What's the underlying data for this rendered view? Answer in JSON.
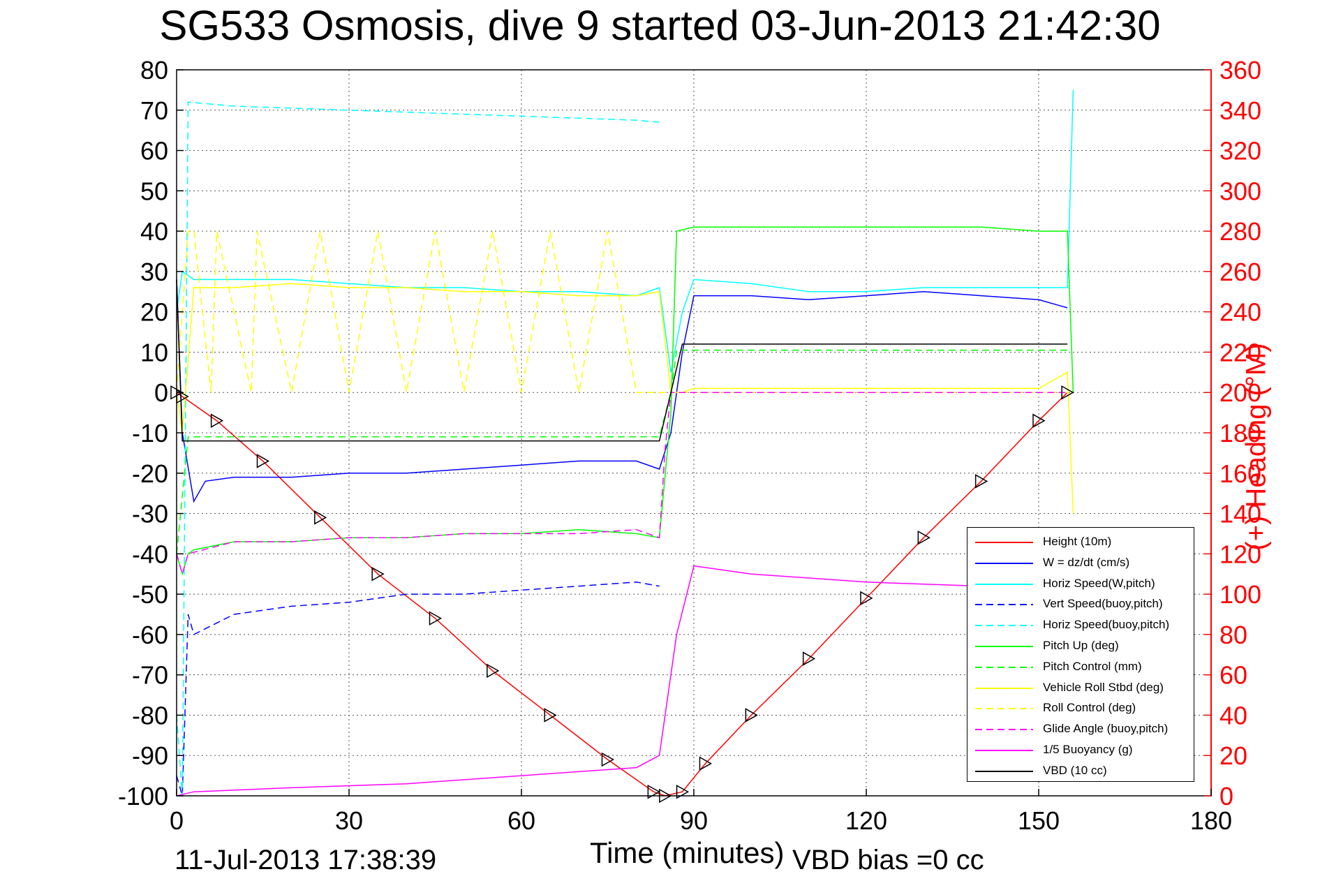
{
  "title": "SG533 Osmosis, dive 9 started 03-Jun-2013 21:42:30",
  "footer": {
    "timestamp": "11-Jul-2013 17:38:39",
    "vbd_bias": "VBD bias =0 cc"
  },
  "chart_data": {
    "type": "line",
    "xlabel": "Time (minutes)",
    "ylabel": "",
    "y2label": "(+) Heading (°M)",
    "xlim": [
      0,
      180
    ],
    "ylim": [
      -100,
      80
    ],
    "y2lim": [
      0,
      360
    ],
    "xticks": [
      0,
      30,
      60,
      90,
      120,
      150,
      180
    ],
    "yticks": [
      80,
      70,
      60,
      50,
      40,
      30,
      20,
      10,
      0,
      -10,
      -20,
      -30,
      -40,
      -50,
      -60,
      -70,
      -80,
      -90,
      -100
    ],
    "y2ticks": [
      360,
      340,
      320,
      300,
      280,
      260,
      240,
      220,
      200,
      180,
      160,
      140,
      120,
      100,
      80,
      60,
      40,
      20,
      0
    ],
    "grid": true,
    "legend_position": "bottom-right",
    "colors": {
      "height": "#ff0000",
      "w": "#0000ff",
      "horiz_w": "#00ffff",
      "vert_buoy": "#0000ff",
      "horiz_buoy": "#00ffff",
      "pitch_up": "#00ff00",
      "pitch_ctrl": "#00ff00",
      "roll": "#ffff00",
      "roll_ctrl": "#ffff00",
      "glide": "#ff00ff",
      "buoyancy": "#ff00ff",
      "vbd": "#000000"
    },
    "series": [
      {
        "name": "Height (10m)",
        "x": [
          0,
          1,
          7,
          15,
          25,
          35,
          45,
          55,
          65,
          75,
          83,
          85,
          88,
          92,
          100,
          110,
          120,
          130,
          140,
          150,
          155
        ],
        "values": [
          0,
          -1,
          -7,
          -17,
          -31,
          -45,
          -56,
          -69,
          -80,
          -91,
          -99,
          -100,
          -99,
          -92,
          -80,
          -66,
          -51,
          -36,
          -22,
          -7,
          0
        ]
      },
      {
        "name": "W = dz/dt (cm/s)",
        "x": [
          0,
          1,
          3,
          5,
          10,
          20,
          30,
          40,
          50,
          60,
          70,
          80,
          84,
          86,
          88,
          90,
          100,
          110,
          120,
          130,
          140,
          150,
          155
        ],
        "values": [
          28,
          -10,
          -27,
          -22,
          -21,
          -21,
          -20,
          -20,
          -19,
          -18,
          -17,
          -17,
          -19,
          -10,
          10,
          24,
          24,
          23,
          24,
          25,
          24,
          23,
          21
        ]
      },
      {
        "name": "Horiz Speed(W,pitch)",
        "x": [
          0,
          1,
          3,
          10,
          20,
          30,
          40,
          50,
          60,
          70,
          80,
          84,
          86,
          88,
          90,
          100,
          110,
          120,
          130,
          140,
          150,
          155,
          156
        ],
        "values": [
          20,
          30,
          28,
          28,
          28,
          27,
          26,
          26,
          25,
          25,
          24,
          26,
          5,
          20,
          28,
          27,
          25,
          25,
          26,
          26,
          26,
          26,
          75
        ]
      },
      {
        "name": "Vert Speed(buoy,pitch)",
        "x": [
          0,
          1,
          2,
          3,
          10,
          20,
          30,
          40,
          50,
          60,
          70,
          80,
          84
        ],
        "values": [
          -95,
          -100,
          -55,
          -60,
          -55,
          -53,
          -52,
          -50,
          -50,
          -49,
          -48,
          -47,
          -48
        ]
      },
      {
        "name": "Horiz Speed(buoy,pitch)",
        "x": [
          0,
          1,
          2,
          10,
          20,
          30,
          40,
          50,
          60,
          70,
          80,
          84
        ],
        "values": [
          -80,
          -100,
          72,
          71,
          70.5,
          70,
          69.5,
          69,
          68.5,
          68,
          67.5,
          67
        ]
      },
      {
        "name": "Pitch Up (deg)",
        "x": [
          0,
          1,
          2,
          3,
          10,
          20,
          30,
          40,
          50,
          60,
          70,
          80,
          84,
          86,
          87,
          90,
          100,
          110,
          120,
          130,
          140,
          150,
          155,
          156
        ],
        "values": [
          -40,
          -45,
          -40,
          -39,
          -37,
          -37,
          -36,
          -36,
          -35,
          -35,
          -34,
          -35,
          -36,
          -5,
          40,
          41,
          41,
          41,
          41,
          41,
          41,
          40,
          40,
          0
        ]
      },
      {
        "name": "Pitch Control (mm)",
        "x": [
          0,
          2,
          84,
          86,
          87,
          155
        ],
        "values": [
          -40,
          -11,
          -11,
          0,
          10.5,
          10.5
        ]
      },
      {
        "name": "Vehicle Roll Stbd (deg)",
        "x": [
          0,
          1,
          3,
          10,
          20,
          30,
          40,
          50,
          60,
          70,
          80,
          84,
          86,
          88,
          90,
          100,
          110,
          120,
          130,
          140,
          150,
          155,
          156
        ],
        "values": [
          0,
          -10,
          26,
          26,
          27,
          26,
          26,
          25,
          25,
          24,
          24,
          25,
          0,
          0,
          1,
          1,
          1,
          1,
          1,
          1,
          1,
          5,
          -30
        ]
      },
      {
        "name": "Roll Control (deg)",
        "x": [
          0,
          2,
          3,
          6,
          7,
          13,
          14,
          20,
          25,
          30,
          35,
          40,
          45,
          50,
          55,
          60,
          65,
          70,
          75,
          80,
          84,
          86,
          155
        ],
        "values": [
          0,
          40,
          40,
          0,
          40,
          0,
          40,
          0,
          40,
          0,
          40,
          0,
          40,
          0,
          40,
          0,
          40,
          0,
          40,
          0,
          0,
          0,
          0
        ]
      },
      {
        "name": "Glide Angle (buoy,pitch)",
        "x": [
          0,
          1,
          2,
          10,
          20,
          30,
          40,
          50,
          60,
          70,
          80,
          84,
          85,
          86,
          155
        ],
        "values": [
          -40,
          -45,
          -40,
          -37,
          -37,
          -36,
          -36,
          -35,
          -35,
          -35,
          -34,
          -36,
          -14,
          0,
          0
        ]
      },
      {
        "name": "1/5 Buoyancy (g)",
        "x": [
          0,
          3,
          20,
          40,
          60,
          80,
          84,
          87,
          90,
          100,
          120,
          140,
          155
        ],
        "values": [
          -100,
          -99,
          -98,
          -97,
          -95,
          -93,
          -90,
          -60,
          -43,
          -45,
          -47,
          -48,
          -48
        ]
      },
      {
        "name": "VBD (10 cc)",
        "x": [
          0,
          1,
          84,
          86,
          88,
          155
        ],
        "values": [
          28,
          -12,
          -12,
          0,
          12,
          12
        ]
      }
    ]
  }
}
